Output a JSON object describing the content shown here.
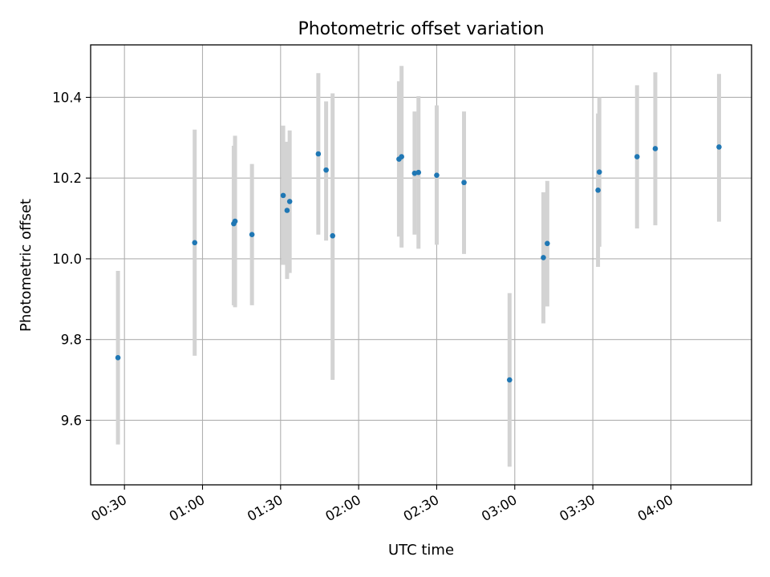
{
  "chart_data": {
    "type": "scatter",
    "title": "Photometric offset variation",
    "xlabel": "UTC time",
    "ylabel": "Photometric offset",
    "x_unit": "UTC",
    "xlim": [
      "00:17",
      "04:31"
    ],
    "ylim": [
      9.44,
      10.53
    ],
    "x_ticks": [
      "00:30",
      "01:00",
      "01:30",
      "02:00",
      "02:30",
      "03:00",
      "03:30",
      "04:00"
    ],
    "y_ticks": [
      9.6,
      9.8,
      10.0,
      10.2,
      10.4
    ],
    "y_tick_labels": [
      "9.6",
      "9.8",
      "10.0",
      "10.2",
      "10.4"
    ],
    "grid": true,
    "colors": {
      "points": "#1f77b4",
      "errorbars": "#d3d3d3",
      "grid": "#b0b0b0"
    },
    "points": [
      {
        "t": "00:27:30",
        "y": 9.755,
        "err_low": 9.54,
        "err_high": 9.97
      },
      {
        "t": "00:57:00",
        "y": 10.04,
        "err_low": 9.76,
        "err_high": 10.32
      },
      {
        "t": "01:12:00",
        "y": 10.087,
        "err_low": 9.885,
        "err_high": 10.28
      },
      {
        "t": "01:12:30",
        "y": 10.093,
        "err_low": 9.88,
        "err_high": 10.305
      },
      {
        "t": "01:19:00",
        "y": 10.06,
        "err_low": 9.885,
        "err_high": 10.235
      },
      {
        "t": "01:31:00",
        "y": 10.157,
        "err_low": 9.985,
        "err_high": 10.33
      },
      {
        "t": "01:32:30",
        "y": 10.12,
        "err_low": 9.95,
        "err_high": 10.29
      },
      {
        "t": "01:33:30",
        "y": 10.142,
        "err_low": 9.965,
        "err_high": 10.318
      },
      {
        "t": "01:44:30",
        "y": 10.26,
        "err_low": 10.06,
        "err_high": 10.46
      },
      {
        "t": "01:47:30",
        "y": 10.22,
        "err_low": 10.045,
        "err_high": 10.39
      },
      {
        "t": "01:50:00",
        "y": 10.057,
        "err_low": 9.7,
        "err_high": 10.41
      },
      {
        "t": "02:15:30",
        "y": 10.247,
        "err_low": 10.055,
        "err_high": 10.44
      },
      {
        "t": "02:16:30",
        "y": 10.253,
        "err_low": 10.028,
        "err_high": 10.478
      },
      {
        "t": "02:21:30",
        "y": 10.212,
        "err_low": 10.06,
        "err_high": 10.365
      },
      {
        "t": "02:23:00",
        "y": 10.214,
        "err_low": 10.025,
        "err_high": 10.403
      },
      {
        "t": "02:30:00",
        "y": 10.207,
        "err_low": 10.035,
        "err_high": 10.38
      },
      {
        "t": "02:40:30",
        "y": 10.189,
        "err_low": 10.012,
        "err_high": 10.365
      },
      {
        "t": "02:58:00",
        "y": 9.7,
        "err_low": 9.485,
        "err_high": 9.915
      },
      {
        "t": "03:11:00",
        "y": 10.003,
        "err_low": 9.84,
        "err_high": 10.165
      },
      {
        "t": "03:12:30",
        "y": 10.038,
        "err_low": 9.882,
        "err_high": 10.193
      },
      {
        "t": "03:32:00",
        "y": 10.17,
        "err_low": 9.98,
        "err_high": 10.36
      },
      {
        "t": "03:32:30",
        "y": 10.215,
        "err_low": 10.03,
        "err_high": 10.4
      },
      {
        "t": "03:47:00",
        "y": 10.253,
        "err_low": 10.075,
        "err_high": 10.43
      },
      {
        "t": "03:54:00",
        "y": 10.273,
        "err_low": 10.083,
        "err_high": 10.462
      },
      {
        "t": "04:18:30",
        "y": 10.277,
        "err_low": 10.092,
        "err_high": 10.458
      }
    ]
  }
}
